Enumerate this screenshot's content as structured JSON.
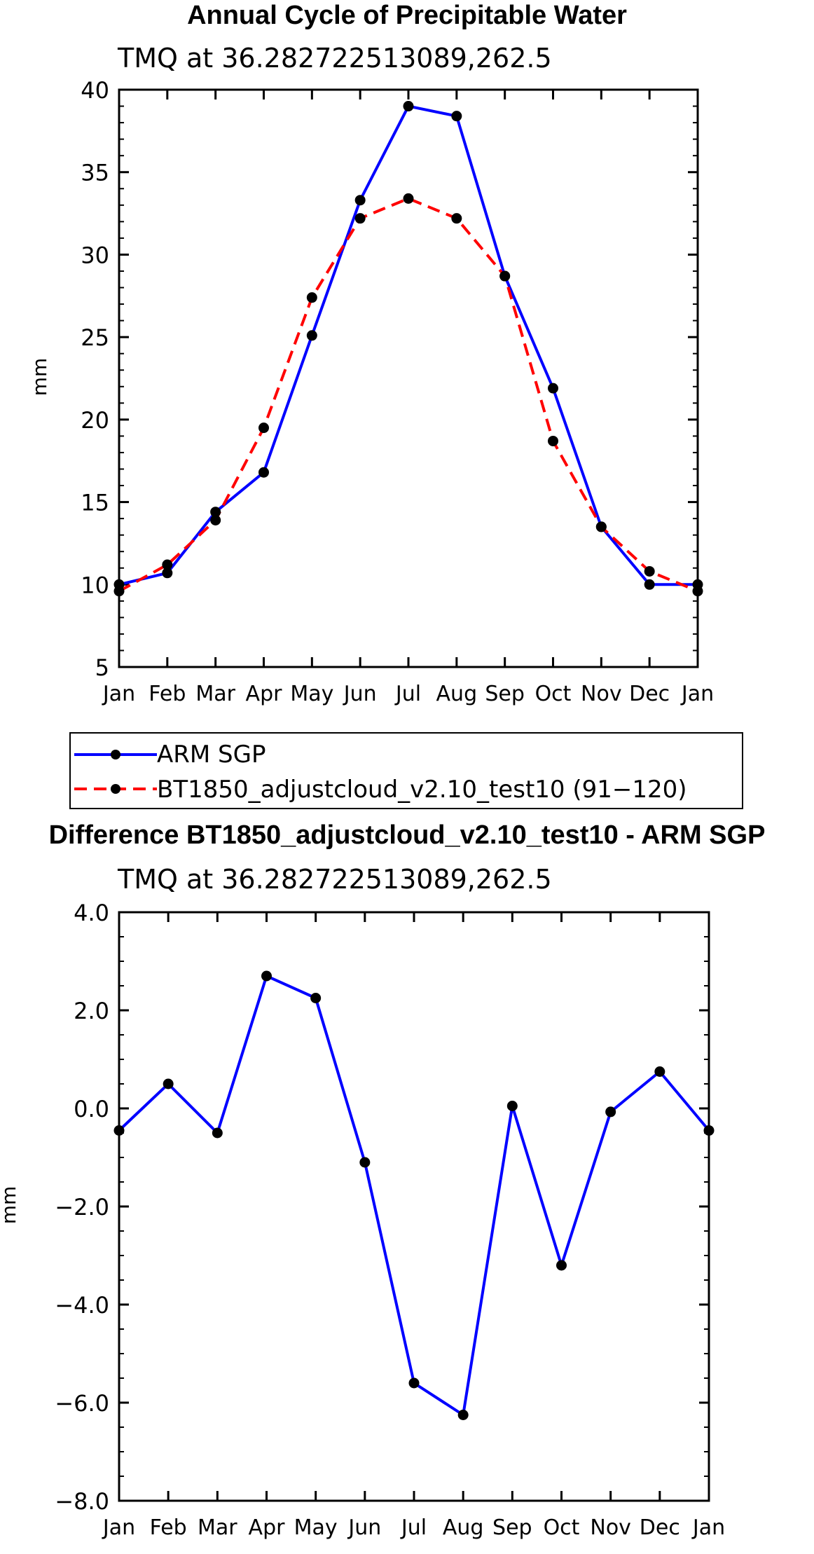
{
  "chart_data": [
    {
      "type": "line",
      "title": "Annual Cycle of Precipitable Water",
      "subtitle": "TMQ at 36.282722513089,262.5",
      "xlabel": "",
      "ylabel": "mm",
      "categories": [
        "Jan",
        "Feb",
        "Mar",
        "Apr",
        "May",
        "Jun",
        "Jul",
        "Aug",
        "Sep",
        "Oct",
        "Nov",
        "Dec",
        "Jan"
      ],
      "ylim": [
        5,
        40
      ],
      "yticks": [
        "5",
        "10",
        "15",
        "20",
        "25",
        "30",
        "35",
        "40"
      ],
      "ytick_values": [
        5,
        10,
        15,
        20,
        25,
        30,
        35,
        40
      ],
      "series": [
        {
          "name": "ARM SGP",
          "color": "#0000ff",
          "dash": "solid",
          "values": [
            10.0,
            10.7,
            14.4,
            16.8,
            25.1,
            33.3,
            39.0,
            38.4,
            28.7,
            21.9,
            13.5,
            10.0,
            10.0
          ]
        },
        {
          "name": "BT1850_adjustcloud_v2.10_test10 (91−120)",
          "color": "#ff0000",
          "dash": "dashed",
          "values": [
            9.6,
            11.2,
            13.9,
            19.5,
            27.4,
            32.2,
            33.4,
            32.2,
            28.7,
            18.7,
            13.5,
            10.8,
            9.6
          ]
        }
      ],
      "legend": "bottom"
    },
    {
      "type": "line",
      "title": "Difference BT1850_adjustcloud_v2.10_test10 - ARM SGP",
      "subtitle": "TMQ at 36.282722513089,262.5",
      "xlabel": "",
      "ylabel": "mm",
      "categories": [
        "Jan",
        "Feb",
        "Mar",
        "Apr",
        "May",
        "Jun",
        "Jul",
        "Aug",
        "Sep",
        "Oct",
        "Nov",
        "Dec",
        "Jan"
      ],
      "ylim": [
        -8,
        4
      ],
      "yticks": [
        "−8.0",
        "−6.0",
        "−4.0",
        "−2.0",
        "0.0",
        "2.0",
        "4.0"
      ],
      "ytick_values": [
        -8,
        -6,
        -4,
        -2,
        0,
        2,
        4
      ],
      "series": [
        {
          "name": "Difference",
          "color": "#0000ff",
          "dash": "solid",
          "values": [
            -0.45,
            0.5,
            -0.5,
            2.7,
            2.25,
            -1.1,
            -5.6,
            -6.25,
            0.05,
            -3.2,
            -0.07,
            0.75,
            -0.45
          ]
        }
      ]
    }
  ]
}
